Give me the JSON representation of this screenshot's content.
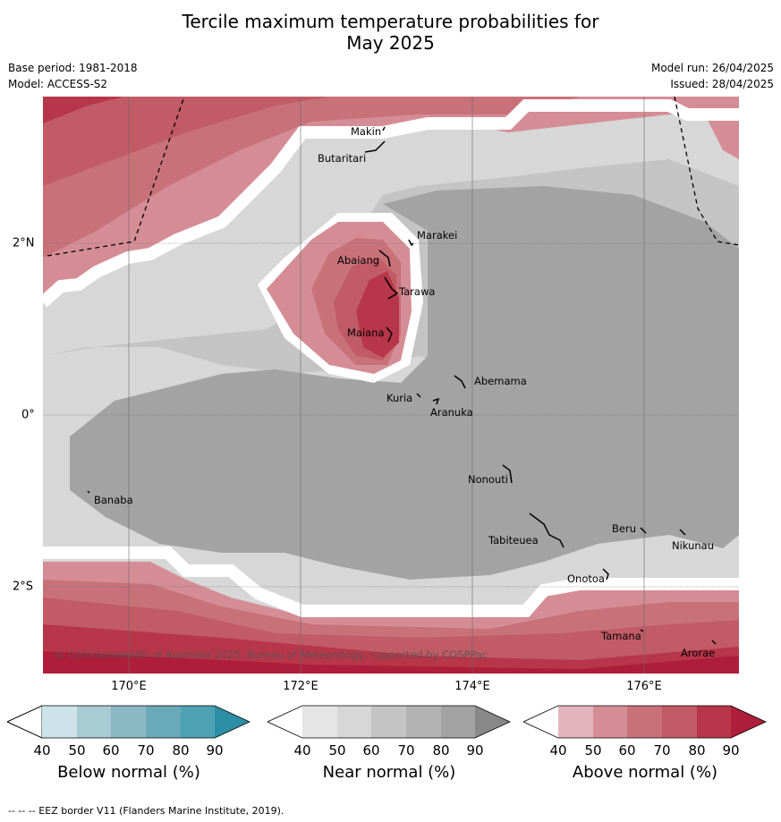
{
  "title_line1": "Tercile maximum temperature probabilities for",
  "title_line2": "May 2025",
  "base_period": "Base period: 1981-2018",
  "model": "Model: ACCESS-S2",
  "model_run": "Model run: 26/04/2025",
  "issued": "Issued: 28/04/2025",
  "copyright": "© Commonwealth of Australia 2025, Bureau of Meteorology, supported by COSPPac",
  "footer": "--  --  -- EEZ border V11 (Flanders Marine Institute, 2019).",
  "lon_labels": [
    "170°E",
    "172°E",
    "174°E",
    "176°E"
  ],
  "lat_labels": [
    "2°N",
    "0°",
    "2°S"
  ],
  "places": [
    {
      "name": "Makin"
    },
    {
      "name": "Butaritari"
    },
    {
      "name": "Marakei"
    },
    {
      "name": "Abaiang"
    },
    {
      "name": "Tarawa"
    },
    {
      "name": "Maiana"
    },
    {
      "name": "Abemama"
    },
    {
      "name": "Kuria"
    },
    {
      "name": "Aranuka"
    },
    {
      "name": "Banaba"
    },
    {
      "name": "Nonouti"
    },
    {
      "name": "Tabiteuea"
    },
    {
      "name": "Beru"
    },
    {
      "name": "Nikunau"
    },
    {
      "name": "Onotoa"
    },
    {
      "name": "Tamana"
    },
    {
      "name": "Arorae"
    }
  ],
  "colorbars": [
    {
      "title": "Below normal (%)",
      "ticks": [
        "40",
        "50",
        "60",
        "70",
        "80",
        "90"
      ],
      "colors": [
        "#ffffff",
        "#cce3ea",
        "#a9cbd3",
        "#8ab8c5",
        "#6aa9b9",
        "#4da2b4",
        "#2d8fa5"
      ]
    },
    {
      "title": "Near normal (%)",
      "ticks": [
        "40",
        "50",
        "60",
        "70",
        "80",
        "90"
      ],
      "colors": [
        "#ffffff",
        "#e5e5e5",
        "#d7d7d7",
        "#c4c4c4",
        "#b3b3b3",
        "#a3a3a3",
        "#888888"
      ]
    },
    {
      "title": "Above normal (%)",
      "ticks": [
        "40",
        "50",
        "60",
        "70",
        "80",
        "90"
      ],
      "colors": [
        "#ffffff",
        "#e2b5bc",
        "#d58d95",
        "#c87179",
        "#c15b66",
        "#b8364a",
        "#ae1e3b"
      ]
    }
  ]
}
